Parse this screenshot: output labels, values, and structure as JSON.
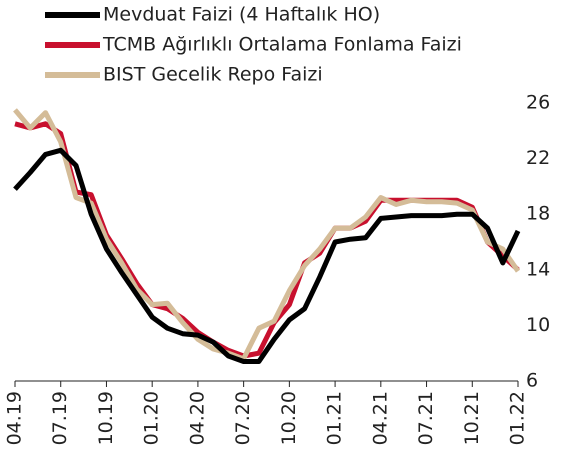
{
  "chart_data": {
    "type": "line",
    "x": [
      "04.19",
      "05.19",
      "06.19",
      "07.19",
      "08.19",
      "09.19",
      "10.19",
      "11.19",
      "12.19",
      "01.20",
      "02.20",
      "03.20",
      "04.20",
      "05.20",
      "06.20",
      "07.20",
      "08.20",
      "09.20",
      "10.20",
      "11.20",
      "12.20",
      "01.21",
      "02.21",
      "03.21",
      "04.21",
      "05.21",
      "06.21",
      "07.21",
      "08.21",
      "09.21",
      "10.21",
      "11.21",
      "12.21",
      "01.22"
    ],
    "series": [
      {
        "name": "Mevduat Faizi (4 Haftalık HO)",
        "color": "#000000",
        "values": [
          19.8,
          21,
          22.3,
          22.6,
          21.5,
          18,
          15.5,
          13.8,
          12.2,
          10.6,
          9.8,
          9.4,
          9.3,
          8.8,
          7.8,
          7.4,
          7.4,
          9,
          10.4,
          11.2,
          13.5,
          16,
          16.2,
          16.3,
          17.7,
          17.8,
          17.9,
          17.9,
          17.9,
          18,
          18,
          17,
          14.5,
          16.8
        ]
      },
      {
        "name": "TCMB Ağırlıklı Ortalama Fonlama Faizi",
        "color": "#c8102e",
        "values": [
          24.5,
          24.2,
          24.5,
          23.8,
          19.6,
          19.4,
          16.5,
          14.8,
          13,
          11.5,
          11.2,
          10.5,
          9.5,
          8.8,
          8.2,
          7.8,
          8,
          10.2,
          11.5,
          14.5,
          15.2,
          17,
          17,
          17.5,
          19,
          19,
          19,
          19,
          19,
          19,
          18.5,
          16,
          15,
          14
        ]
      },
      {
        "name": "BIST Gecelik Repo Faizi",
        "color": "#d4bc98",
        "values": [
          25.5,
          24.2,
          25.3,
          23.2,
          19.2,
          18.8,
          16.2,
          14.5,
          12.6,
          11.5,
          11.6,
          10.2,
          9,
          8.3,
          8,
          7.6,
          9.8,
          10.3,
          12.5,
          14.3,
          15.5,
          17,
          17,
          17.8,
          19.2,
          18.7,
          19,
          18.9,
          18.9,
          18.8,
          18.3,
          16,
          15.5,
          13.9
        ]
      }
    ],
    "xticks": [
      "04.19",
      "07.19",
      "10.19",
      "01.20",
      "04.20",
      "07.20",
      "10.20",
      "01.21",
      "04.21",
      "07.21",
      "10.21",
      "01.22"
    ],
    "ylim": [
      6,
      26
    ],
    "yticks": [
      6,
      10,
      14,
      18,
      22,
      26
    ],
    "y_axis_side": "right",
    "legend": "top-left"
  }
}
